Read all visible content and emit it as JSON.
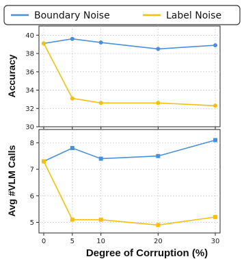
{
  "chart_data": {
    "type": "line",
    "legend": {
      "position": "top",
      "entries": [
        {
          "name": "Boundary Noise",
          "color": "#4a90d9"
        },
        {
          "name": "Label Noise",
          "color": "#f5bf0e"
        }
      ]
    },
    "x": [
      0,
      5,
      10,
      20,
      30
    ],
    "xlabel": "Degree of Corruption (%)",
    "xticks": [
      0,
      5,
      10,
      20,
      30
    ],
    "grid": true,
    "panels": [
      {
        "ylabel": "Accuracy",
        "ylim": [
          30,
          41
        ],
        "yticks": [
          30,
          32,
          34,
          36,
          38,
          40
        ],
        "marker": "circle",
        "series": [
          {
            "name": "Boundary Noise",
            "values": [
              39.1,
              39.6,
              39.2,
              38.5,
              38.9
            ]
          },
          {
            "name": "Label Noise",
            "values": [
              39.1,
              33.1,
              32.6,
              32.6,
              32.3
            ]
          }
        ]
      },
      {
        "ylabel": "Avg #VLM Calls",
        "ylim": [
          4.6,
          8.5
        ],
        "yticks": [
          5,
          6,
          7,
          8
        ],
        "marker": "square",
        "series": [
          {
            "name": "Boundary Noise",
            "values": [
              7.3,
              7.8,
              7.4,
              7.5,
              8.1
            ]
          },
          {
            "name": "Label Noise",
            "values": [
              7.3,
              5.1,
              5.1,
              4.9,
              5.2
            ]
          }
        ]
      }
    ]
  }
}
